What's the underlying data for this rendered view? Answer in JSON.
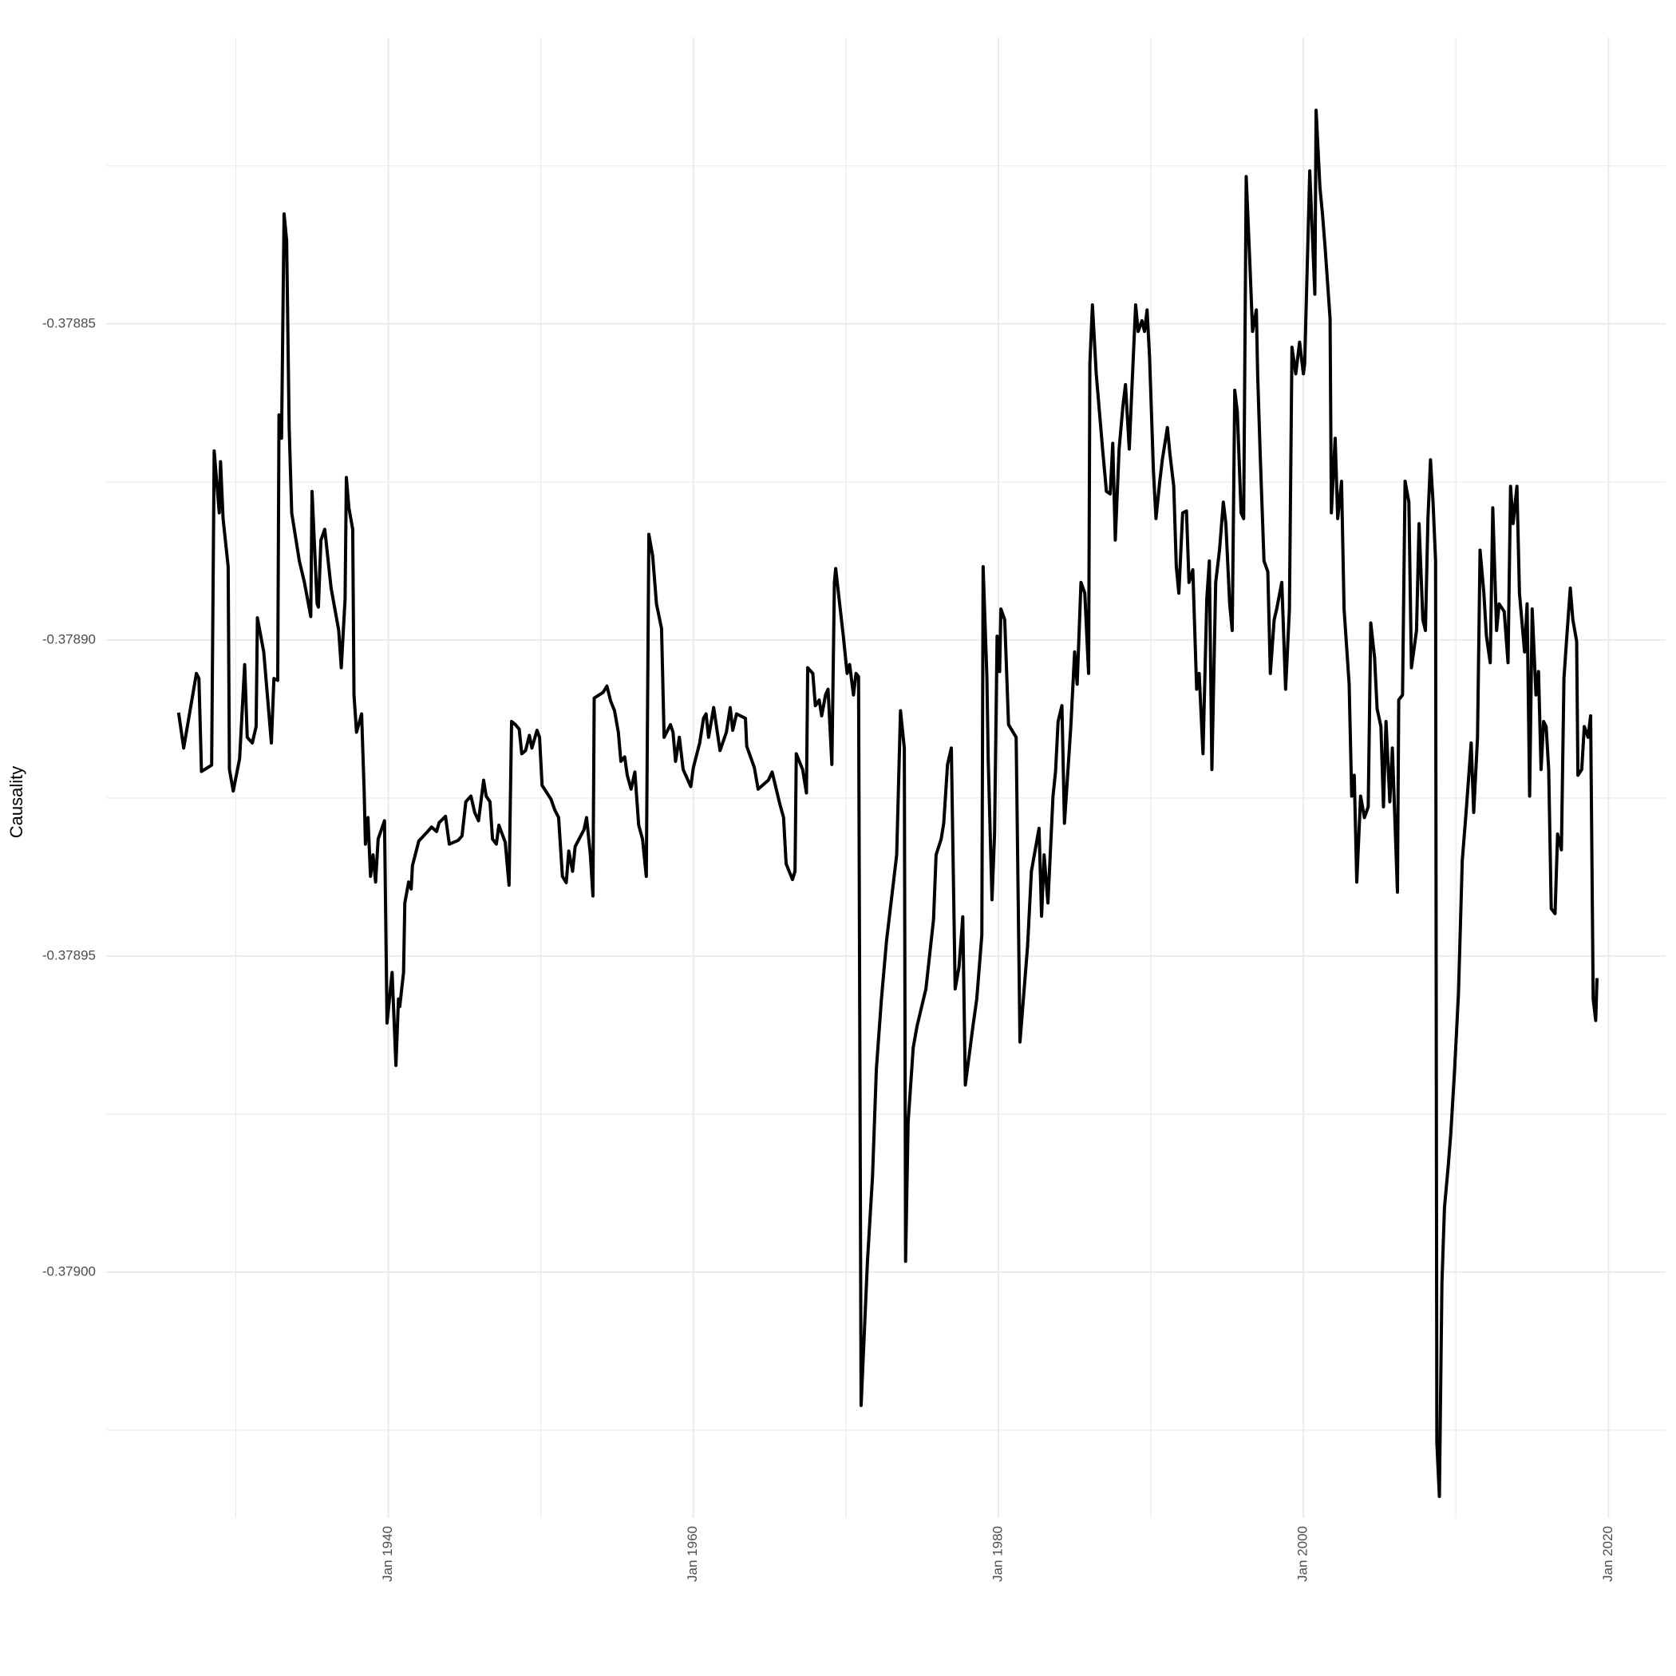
{
  "chart_data": {
    "type": "line",
    "y_label": "Causality",
    "x": [
      "1926-04",
      "1926-08",
      "1927-01",
      "1927-06",
      "1927-08",
      "1927-10",
      "1928-06",
      "1928-08",
      "1928-12",
      "1929-01",
      "1929-03",
      "1929-07",
      "1929-08",
      "1929-11",
      "1930-04",
      "1930-08",
      "1930-10",
      "1931-02",
      "1931-05",
      "1931-06",
      "1931-11",
      "1932-05",
      "1932-07",
      "1932-10",
      "1932-11",
      "1933-01",
      "1933-03",
      "1933-05",
      "1933-07",
      "1933-09",
      "1934-03",
      "1934-07",
      "1934-12",
      "1935-01",
      "1935-05",
      "1935-06",
      "1935-08",
      "1935-11",
      "1936-04",
      "1936-10",
      "1936-12",
      "1937-03",
      "1937-04",
      "1937-06",
      "1937-09",
      "1937-10",
      "1937-12",
      "1938-04",
      "1938-06",
      "1938-07",
      "1938-09",
      "1938-11",
      "1939-01",
      "1939-03",
      "1939-05",
      "1939-10",
      "1939-12",
      "1940-04",
      "1940-07",
      "1940-09",
      "1940-10",
      "1941-01",
      "1941-02",
      "1941-05",
      "1941-07",
      "1941-08",
      "1942-01",
      "1942-08",
      "1942-11",
      "1943-03",
      "1943-05",
      "1943-10",
      "1944-01",
      "1944-08",
      "1944-11",
      "1945-02",
      "1945-06",
      "1945-09",
      "1945-12",
      "1946-04",
      "1946-06",
      "1946-09",
      "1946-11",
      "1947-02",
      "1947-04",
      "1947-09",
      "1947-12",
      "1948-02",
      "1948-05",
      "1948-08",
      "1948-10",
      "1949-01",
      "1949-04",
      "1949-06",
      "1949-10",
      "1949-12",
      "1950-02",
      "1950-09",
      "1950-12",
      "1951-03",
      "1951-06",
      "1951-09",
      "1951-11",
      "1952-02",
      "1952-04",
      "1952-11",
      "1953-01",
      "1953-04",
      "1953-06",
      "1953-07",
      "1954-02",
      "1954-05",
      "1954-08",
      "1954-11",
      "1955-02",
      "1955-04",
      "1955-07",
      "1955-09",
      "1955-12",
      "1956-03",
      "1956-06",
      "1956-09",
      "1956-12",
      "1957-02",
      "1957-05",
      "1957-08",
      "1957-12",
      "1958-02",
      "1958-07",
      "1958-09",
      "1958-11",
      "1959-02",
      "1959-05",
      "1959-11",
      "1960-01",
      "1960-06",
      "1960-09",
      "1960-11",
      "1961-01",
      "1961-05",
      "1961-10",
      "1962-03",
      "1962-06",
      "1962-08",
      "1962-11",
      "1963-06",
      "1963-07",
      "1964-01",
      "1964-04",
      "1964-12",
      "1965-03",
      "1965-09",
      "1965-12",
      "1966-02",
      "1966-07",
      "1966-09",
      "1966-10",
      "1967-03",
      "1967-06",
      "1967-07",
      "1967-11",
      "1968-01",
      "1968-04",
      "1968-06",
      "1968-09",
      "1968-11",
      "1969-02",
      "1969-04",
      "1969-05",
      "1969-11",
      "1970-02",
      "1970-04",
      "1970-07",
      "1970-09",
      "1970-11",
      "1971-01",
      "1971-06",
      "1971-10",
      "1972-01",
      "1972-05",
      "1972-09",
      "1973-01",
      "1973-05",
      "1973-08",
      "1973-11",
      "1973-12",
      "1974-02",
      "1974-06",
      "1974-09",
      "1975-04",
      "1975-10",
      "1975-12",
      "1976-04",
      "1976-06",
      "1976-09",
      "1976-12",
      "1977-03",
      "1977-06",
      "1977-09",
      "1977-11",
      "1978-05",
      "1978-08",
      "1978-12",
      "1979-01",
      "1979-04",
      "1979-05",
      "1979-08",
      "1979-10",
      "1979-12",
      "1980-02",
      "1980-03",
      "1980-06",
      "1980-09",
      "1981-03",
      "1981-06",
      "1981-12",
      "1982-03",
      "1982-09",
      "1982-11",
      "1983-01",
      "1983-04",
      "1983-08",
      "1983-10",
      "1983-12",
      "1984-03",
      "1984-05",
      "1984-10",
      "1985-01",
      "1985-03",
      "1985-06",
      "1985-09",
      "1985-12",
      "1986-01",
      "1986-03",
      "1986-06",
      "1986-11",
      "1987-02",
      "1987-05",
      "1987-07",
      "1987-09",
      "1987-12",
      "1988-03",
      "1988-05",
      "1988-08",
      "1988-10",
      "1989-01",
      "1989-03",
      "1989-06",
      "1989-08",
      "1989-10",
      "1989-12",
      "1990-03",
      "1990-05",
      "1990-08",
      "1990-10",
      "1991-02",
      "1991-04",
      "1991-07",
      "1991-09",
      "1991-11",
      "1992-02",
      "1992-05",
      "1992-07",
      "1992-10",
      "1993-01",
      "1993-03",
      "1993-06",
      "1993-09",
      "1993-11",
      "1994-01",
      "1994-04",
      "1994-07",
      "1994-10",
      "1994-12",
      "1995-03",
      "1995-05",
      "1995-07",
      "1995-09",
      "1995-12",
      "1996-02",
      "1996-04",
      "1996-07",
      "1996-09",
      "1996-12",
      "1997-01",
      "1997-03",
      "1997-06",
      "1997-09",
      "1997-11",
      "1998-02",
      "1998-04",
      "1998-08",
      "1998-11",
      "1999-02",
      "1999-04",
      "1999-07",
      "1999-10",
      "2000-01",
      "2000-02",
      "2000-06",
      "2000-10",
      "2000-11",
      "2001-02",
      "2001-04",
      "2001-06",
      "2001-10",
      "2001-11",
      "2002-02",
      "2002-04",
      "2002-07",
      "2002-09",
      "2003-01",
      "2003-03",
      "2003-05",
      "2003-07",
      "2003-10",
      "2004-01",
      "2004-04",
      "2004-06",
      "2004-09",
      "2004-11",
      "2005-02",
      "2005-04",
      "2005-06",
      "2005-09",
      "2005-11",
      "2006-03",
      "2006-04",
      "2006-07",
      "2006-09",
      "2006-12",
      "2007-02",
      "2007-06",
      "2007-08",
      "2007-11",
      "2008-01",
      "2008-03",
      "2008-05",
      "2008-07",
      "2008-09",
      "2008-10",
      "2008-12",
      "2009-02",
      "2009-04",
      "2009-07",
      "2009-09",
      "2009-12",
      "2010-03",
      "2010-06",
      "2010-09",
      "2011-01",
      "2011-03",
      "2011-06",
      "2011-08",
      "2011-11",
      "2012-01",
      "2012-04",
      "2012-06",
      "2012-09",
      "2012-11",
      "2013-03",
      "2013-06",
      "2013-08",
      "2013-10",
      "2014-01",
      "2014-03",
      "2014-07",
      "2014-09",
      "2014-11",
      "2015-01",
      "2015-04",
      "2015-06",
      "2015-08",
      "2015-10",
      "2015-12",
      "2016-02",
      "2016-04",
      "2016-07",
      "2016-09",
      "2016-12",
      "2017-02",
      "2017-04",
      "2017-07",
      "2017-09",
      "2017-12",
      "2018-01",
      "2018-04",
      "2018-06",
      "2018-09",
      "2018-11",
      "2019-01",
      "2019-03",
      "2019-04"
    ],
    "series": [
      {
        "color": "#000000",
        "values": [
          -0.3789115,
          -0.3789171,
          -0.3789112,
          -0.3789053,
          -0.3789061,
          -0.3789208,
          -0.3789198,
          -0.3788701,
          -0.3788799,
          -0.3788718,
          -0.3788808,
          -0.3788884,
          -0.3789205,
          -0.3789239,
          -0.3789188,
          -0.3789039,
          -0.3789154,
          -0.3789163,
          -0.3789137,
          -0.3788965,
          -0.3789019,
          -0.3789163,
          -0.3789061,
          -0.3789064,
          -0.3788644,
          -0.3788681,
          -0.3788326,
          -0.3788368,
          -0.3788664,
          -0.3788799,
          -0.3788875,
          -0.3788909,
          -0.3788963,
          -0.3788765,
          -0.3788943,
          -0.3788948,
          -0.3788842,
          -0.3788825,
          -0.3788918,
          -0.3788985,
          -0.3789044,
          -0.3788935,
          -0.3788743,
          -0.3788791,
          -0.3788825,
          -0.3789087,
          -0.3789146,
          -0.3789117,
          -0.3789239,
          -0.3789323,
          -0.3789281,
          -0.3789374,
          -0.378934,
          -0.3789383,
          -0.3789315,
          -0.3789286,
          -0.3789606,
          -0.3789526,
          -0.3789673,
          -0.3789568,
          -0.378958,
          -0.3789526,
          -0.3789416,
          -0.3789383,
          -0.3789394,
          -0.3789357,
          -0.3789318,
          -0.3789303,
          -0.3789296,
          -0.3789303,
          -0.3789289,
          -0.3789279,
          -0.3789323,
          -0.3789317,
          -0.378931,
          -0.3789256,
          -0.3789247,
          -0.3789273,
          -0.3789286,
          -0.3789222,
          -0.3789247,
          -0.3789256,
          -0.3789315,
          -0.3789323,
          -0.3789293,
          -0.378932,
          -0.3789388,
          -0.3789129,
          -0.3789134,
          -0.3789141,
          -0.378918,
          -0.3789175,
          -0.3789151,
          -0.3789171,
          -0.3789143,
          -0.3789154,
          -0.378923,
          -0.3789252,
          -0.3789269,
          -0.3789281,
          -0.3789374,
          -0.3789384,
          -0.3789334,
          -0.3789366,
          -0.3789327,
          -0.37893,
          -0.3789281,
          -0.378934,
          -0.3789405,
          -0.3789092,
          -0.3789083,
          -0.3789073,
          -0.3789097,
          -0.3789112,
          -0.3789146,
          -0.3789192,
          -0.3789185,
          -0.3789214,
          -0.3789236,
          -0.3789209,
          -0.3789293,
          -0.3789315,
          -0.3789374,
          -0.3788833,
          -0.3788867,
          -0.3788943,
          -0.3788982,
          -0.3789154,
          -0.3789134,
          -0.3789146,
          -0.3789192,
          -0.3789154,
          -0.3789205,
          -0.3789232,
          -0.3789202,
          -0.3789163,
          -0.3789124,
          -0.3789117,
          -0.3789154,
          -0.3789107,
          -0.3789175,
          -0.3789146,
          -0.3789107,
          -0.3789143,
          -0.3789117,
          -0.3789124,
          -0.3789168,
          -0.3789202,
          -0.3789236,
          -0.3789222,
          -0.3789209,
          -0.3789259,
          -0.3789281,
          -0.3789354,
          -0.3789379,
          -0.3789366,
          -0.378918,
          -0.3789205,
          -0.3789242,
          -0.3789044,
          -0.3789053,
          -0.3789104,
          -0.3789095,
          -0.378912,
          -0.3789087,
          -0.3789078,
          -0.3789197,
          -0.3788909,
          -0.3788887,
          -0.3788994,
          -0.3789053,
          -0.3789039,
          -0.3789087,
          -0.3789053,
          -0.3789058,
          -0.3790211,
          -0.3789983,
          -0.3789848,
          -0.3789679,
          -0.3789568,
          -0.3789476,
          -0.3789408,
          -0.378934,
          -0.3789112,
          -0.3789171,
          -0.3789983,
          -0.3789763,
          -0.3789645,
          -0.3789611,
          -0.3789552,
          -0.3789442,
          -0.378934,
          -0.3789315,
          -0.378929,
          -0.3789197,
          -0.3789171,
          -0.3789552,
          -0.3789518,
          -0.3789438,
          -0.3789704,
          -0.3789611,
          -0.3789568,
          -0.3789467,
          -0.3788884,
          -0.3789061,
          -0.3789188,
          -0.3789411,
          -0.3789307,
          -0.3788994,
          -0.378905,
          -0.3788951,
          -0.3788968,
          -0.3789134,
          -0.3789154,
          -0.3789636,
          -0.3789484,
          -0.3789366,
          -0.3789298,
          -0.3789437,
          -0.378934,
          -0.3789416,
          -0.3789247,
          -0.3789208,
          -0.3789129,
          -0.3789104,
          -0.378929,
          -0.3789137,
          -0.3789019,
          -0.378907,
          -0.3788909,
          -0.3788926,
          -0.3789053,
          -0.3788563,
          -0.378847,
          -0.3788579,
          -0.3788698,
          -0.3788765,
          -0.3788769,
          -0.3788689,
          -0.3788842,
          -0.3788698,
          -0.378863,
          -0.3788596,
          -0.3788698,
          -0.3788605,
          -0.378847,
          -0.3788512,
          -0.3788495,
          -0.3788512,
          -0.3788478,
          -0.3788554,
          -0.3788732,
          -0.3788808,
          -0.3788749,
          -0.3788715,
          -0.3788664,
          -0.3788706,
          -0.3788757,
          -0.3788884,
          -0.3788926,
          -0.3788799,
          -0.3788796,
          -0.3788909,
          -0.3788889,
          -0.3789078,
          -0.3789053,
          -0.378918,
          -0.3788935,
          -0.3788875,
          -0.3789205,
          -0.3788909,
          -0.3788858,
          -0.3788782,
          -0.3788816,
          -0.3788943,
          -0.3788985,
          -0.3788605,
          -0.3788639,
          -0.3788799,
          -0.3788808,
          -0.3788267,
          -0.378841,
          -0.3788512,
          -0.3788478,
          -0.3788579,
          -0.3788706,
          -0.3788875,
          -0.3788892,
          -0.3789053,
          -0.3788968,
          -0.3788951,
          -0.3788909,
          -0.3789078,
          -0.3788951,
          -0.3788537,
          -0.3788579,
          -0.3788529,
          -0.3788579,
          -0.3788563,
          -0.3788258,
          -0.3788453,
          -0.3788162,
          -0.3788284,
          -0.3788326,
          -0.3788377,
          -0.3788492,
          -0.3788799,
          -0.3788681,
          -0.3788808,
          -0.3788749,
          -0.3788951,
          -0.378907,
          -0.3789247,
          -0.3789214,
          -0.3789383,
          -0.3789247,
          -0.3789281,
          -0.3789264,
          -0.3788973,
          -0.3789028,
          -0.3789109,
          -0.3789137,
          -0.3789264,
          -0.3789129,
          -0.3789256,
          -0.3789171,
          -0.3789399,
          -0.3789095,
          -0.3789087,
          -0.3788749,
          -0.3788782,
          -0.3789044,
          -0.3788985,
          -0.3788816,
          -0.3788968,
          -0.3788985,
          -0.3788808,
          -0.3788715,
          -0.3788782,
          -0.3788875,
          -0.379027,
          -0.3790355,
          -0.3790017,
          -0.3789898,
          -0.3789831,
          -0.378978,
          -0.3789679,
          -0.378956,
          -0.3789349,
          -0.3789273,
          -0.3789163,
          -0.3789273,
          -0.3789154,
          -0.3788858,
          -0.3788926,
          -0.3788994,
          -0.3789036,
          -0.3788791,
          -0.3788985,
          -0.3788943,
          -0.3788955,
          -0.3789036,
          -0.3788757,
          -0.3788816,
          -0.3788757,
          -0.3788926,
          -0.3789019,
          -0.3788943,
          -0.3789247,
          -0.3788951,
          -0.3789087,
          -0.378905,
          -0.3789205,
          -0.3789129,
          -0.3789137,
          -0.3789205,
          -0.3789425,
          -0.3789433,
          -0.3789307,
          -0.3789332,
          -0.3789061,
          -0.3789002,
          -0.3788918,
          -0.3788968,
          -0.3789002,
          -0.3789214,
          -0.3789205,
          -0.3789137,
          -0.3789154,
          -0.378912,
          -0.3789568,
          -0.3789602,
          -0.3789535
        ]
      }
    ],
    "xlim": [
      "1921-07",
      "2023-10"
    ],
    "xticks": [
      {
        "value": "1940-01",
        "label": "Jan 1940"
      },
      {
        "value": "1960-01",
        "label": "Jan 1960"
      },
      {
        "value": "1980-01",
        "label": "Jan 1980"
      },
      {
        "value": "2000-01",
        "label": "Jan 2000"
      },
      {
        "value": "2020-01",
        "label": "Jan 2020"
      }
    ],
    "ylim": [
      -0.3790389,
      -0.3788047
    ],
    "yticks": [
      {
        "value": -0.379,
        "label": "-0.37900"
      },
      -0.37895,
      {
        "value": -0.3789,
        "label": "-0.37890"
      },
      -0.37885
    ],
    "grid": true
  }
}
